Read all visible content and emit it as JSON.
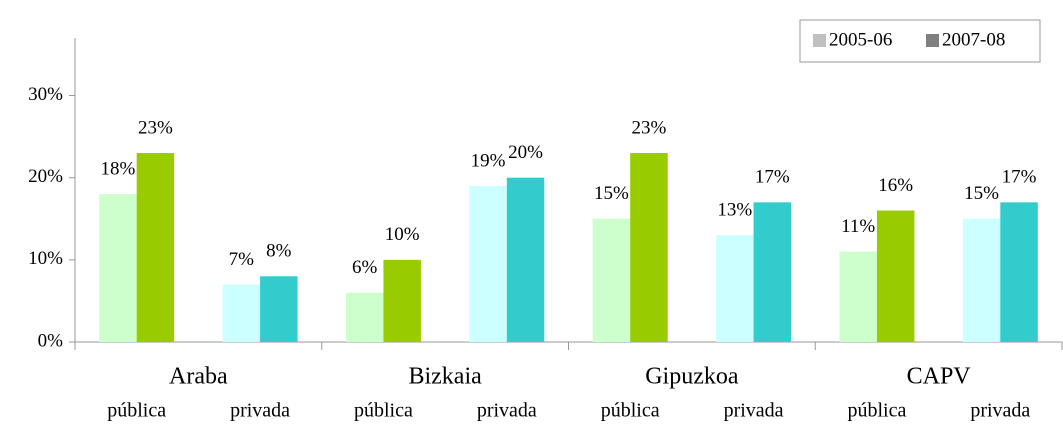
{
  "chart_data": {
    "type": "bar",
    "groups": [
      "Araba",
      "Bizkaia",
      "Gipuzkoa",
      "CAPV"
    ],
    "categories": [
      "pública",
      "privada",
      "pública",
      "privada",
      "pública",
      "privada",
      "pública",
      "privada"
    ],
    "series": [
      {
        "name": "2005-06",
        "color": "#c0c0c0",
        "colors": [
          "#ccffcc",
          "#ccffff",
          "#ccffcc",
          "#ccffff",
          "#ccffcc",
          "#ccffff",
          "#ccffcc",
          "#ccffff"
        ],
        "values": [
          18,
          7,
          6,
          19,
          15,
          13,
          11,
          15
        ],
        "value_labels": [
          "18%",
          "7%",
          "6%",
          "19%",
          "15%",
          "13%",
          "11%",
          "15%"
        ]
      },
      {
        "name": "2007-08",
        "color": "#808080",
        "colors": [
          "#99cc00",
          "#33cccc",
          "#99cc00",
          "#33cccc",
          "#99cc00",
          "#33cccc",
          "#99cc00",
          "#33cccc"
        ],
        "values": [
          23,
          8,
          10,
          20,
          23,
          17,
          16,
          17
        ],
        "value_labels": [
          "23%",
          "8%",
          "10%",
          "20%",
          "23%",
          "17%",
          "16%",
          "17%"
        ]
      }
    ],
    "ylim": [
      0,
      37
    ],
    "yticks": [
      {
        "value": 0,
        "label": "0%"
      },
      {
        "value": 10,
        "label": "10%"
      },
      {
        "value": 20,
        "label": "20%"
      },
      {
        "value": 30,
        "label": "30%"
      }
    ],
    "legend": "top-right"
  }
}
